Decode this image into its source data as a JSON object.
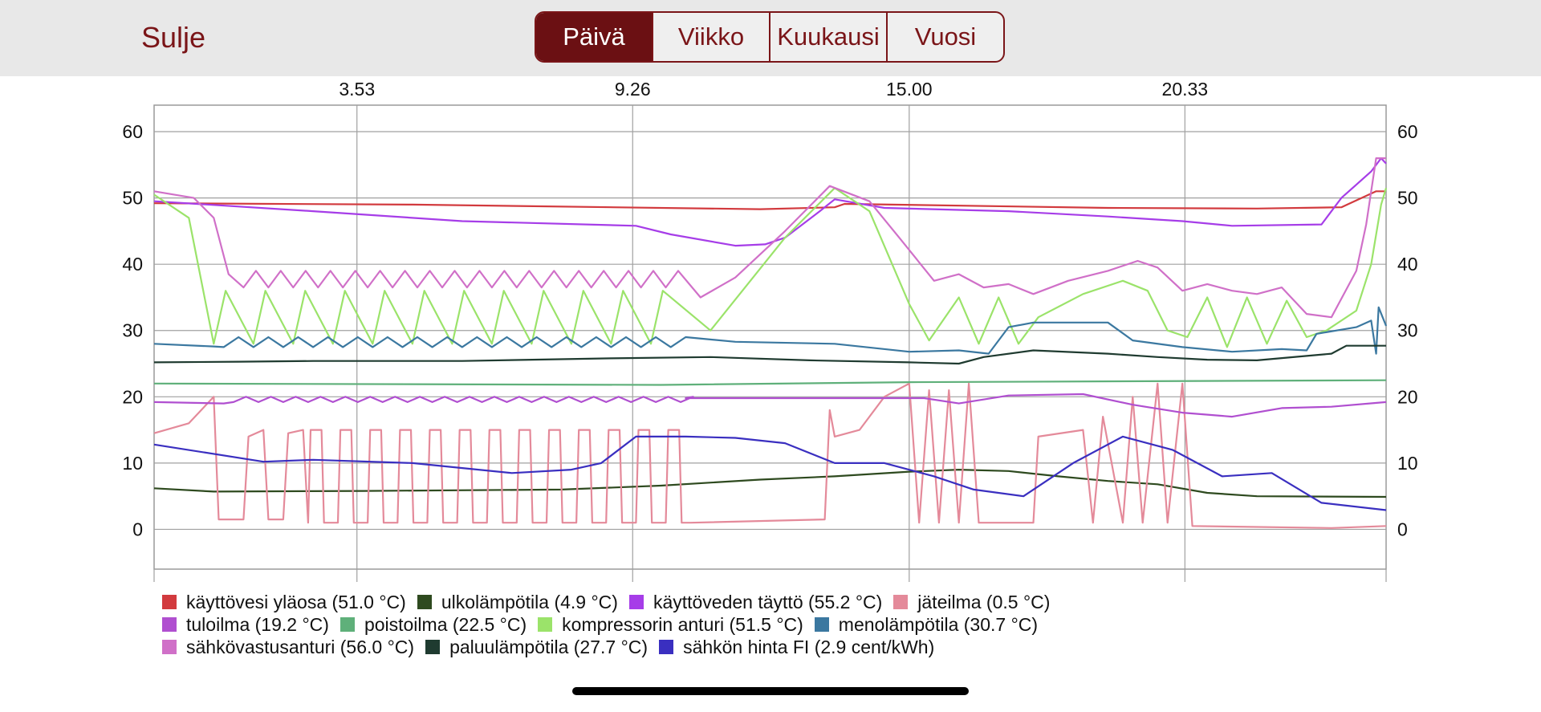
{
  "header": {
    "close_label": "Sulje",
    "tabs": [
      {
        "label": "Päivä",
        "active": true
      },
      {
        "label": "Viikko",
        "active": false
      },
      {
        "label": "Kuukausi",
        "active": false
      },
      {
        "label": "Vuosi",
        "active": false
      }
    ],
    "accent_color": "#6b1013"
  },
  "chart_data": {
    "type": "line",
    "title": "",
    "x_ticks": [
      "3.53",
      "9.26",
      "15.00",
      "20.33"
    ],
    "y_ticks": [
      60,
      50,
      40,
      30,
      20,
      10,
      0
    ],
    "ylim": [
      -6,
      64
    ],
    "x_range_hours": [
      -0.2,
      24.6
    ],
    "grid": true,
    "legend_position": "bottom",
    "series": [
      {
        "name": "käyttövesi yläosa (51.0 °C)",
        "color": "#d23a3e",
        "kind": "step",
        "points": [
          [
            -0.2,
            49.2
          ],
          [
            5,
            49
          ],
          [
            12,
            48.3
          ],
          [
            13.5,
            48.6
          ],
          [
            13.7,
            49.1
          ],
          [
            19,
            48.5
          ],
          [
            22,
            48.4
          ],
          [
            23.7,
            48.6
          ],
          [
            24.4,
            51
          ],
          [
            24.6,
            51
          ]
        ]
      },
      {
        "name": "ulkolämpötila (4.9 °C)",
        "color": "#2e4a1f",
        "points": [
          [
            -0.2,
            6.2
          ],
          [
            1,
            5.7
          ],
          [
            4,
            5.8
          ],
          [
            8,
            6
          ],
          [
            10,
            6.6
          ],
          [
            12,
            7.5
          ],
          [
            13.5,
            8
          ],
          [
            15,
            8.7
          ],
          [
            16,
            9
          ],
          [
            17,
            8.8
          ],
          [
            18,
            8
          ],
          [
            19,
            7.3
          ],
          [
            20,
            6.8
          ],
          [
            21,
            5.5
          ],
          [
            22,
            5
          ],
          [
            24.6,
            4.9
          ]
        ]
      },
      {
        "name": "käyttöveden täyttö (55.2 °C)",
        "color": "#a63de8",
        "points": [
          [
            -0.2,
            49.5
          ],
          [
            3,
            48
          ],
          [
            6,
            46.5
          ],
          [
            9.5,
            45.8
          ],
          [
            10.2,
            44.5
          ],
          [
            11.5,
            42.8
          ],
          [
            12.1,
            43
          ],
          [
            12.5,
            44
          ],
          [
            13.2,
            48
          ],
          [
            13.5,
            49.8
          ],
          [
            14.5,
            48.5
          ],
          [
            17,
            48
          ],
          [
            19,
            47.2
          ],
          [
            20.5,
            46.5
          ],
          [
            21.5,
            45.8
          ],
          [
            23.3,
            46
          ],
          [
            23.7,
            50
          ],
          [
            24,
            52
          ],
          [
            24.3,
            54
          ],
          [
            24.5,
            56
          ],
          [
            24.6,
            55.2
          ]
        ]
      },
      {
        "name": "jäteilma (0.5 °C)",
        "color": "#e48a9a",
        "kind": "jateilma",
        "points": [
          [
            -0.2,
            14.5
          ],
          [
            0.4,
            16
          ],
          [
            1,
            20
          ]
        ]
      },
      {
        "name": "tuloilma (19.2 °C)",
        "color": "#b04fd0",
        "kind": "tuloilma",
        "points": [
          [
            -0.2,
            19.2
          ],
          [
            1,
            19
          ],
          [
            10.5,
            19.8
          ],
          [
            13.5,
            19.8
          ],
          [
            15.3,
            19.8
          ],
          [
            16,
            19
          ],
          [
            17,
            20.2
          ],
          [
            18.5,
            20.4
          ],
          [
            19.5,
            18.8
          ],
          [
            20.5,
            17.6
          ],
          [
            21.5,
            17
          ],
          [
            22.5,
            18.3
          ],
          [
            23.5,
            18.5
          ],
          [
            24.6,
            19.2
          ]
        ]
      },
      {
        "name": "poistoilma (22.5 °C)",
        "color": "#5fb07a",
        "points": [
          [
            -0.2,
            22
          ],
          [
            10,
            21.8
          ],
          [
            15,
            22.2
          ],
          [
            24.6,
            22.5
          ]
        ]
      },
      {
        "name": "kompressorin anturi (51.5 °C)",
        "color": "#9be36a",
        "kind": "kompressori",
        "points": [
          [
            -0.2,
            50
          ],
          [
            0.8,
            38
          ]
        ]
      },
      {
        "name": "menolämpötila (30.7 °C)",
        "color": "#3b78a0",
        "kind": "meno",
        "points": [
          [
            -0.2,
            28
          ],
          [
            1,
            27.5
          ]
        ]
      },
      {
        "name": "sähkövastusanturi (56.0 °C)",
        "color": "#d070c8",
        "kind": "vastus",
        "points": [
          [
            -0.2,
            51
          ]
        ]
      },
      {
        "name": "paluulämpötila (27.7 °C)",
        "color": "#1f3b30",
        "points": [
          [
            -0.2,
            25.2
          ],
          [
            1.5,
            25.3
          ],
          [
            3,
            25.4
          ],
          [
            6,
            25.4
          ],
          [
            9,
            25.8
          ],
          [
            11,
            26
          ],
          [
            13,
            25.5
          ],
          [
            15,
            25.2
          ],
          [
            16,
            25
          ],
          [
            16.5,
            26
          ],
          [
            17.5,
            27
          ],
          [
            19,
            26.5
          ],
          [
            20,
            26
          ],
          [
            21,
            25.6
          ],
          [
            22,
            25.5
          ],
          [
            23.5,
            26.5
          ],
          [
            23.8,
            27.7
          ],
          [
            24.6,
            27.7
          ]
        ]
      },
      {
        "name": "sähkön hinta FI (2.9 cent/kWh)",
        "color": "#3a2fc0",
        "points": [
          [
            -0.2,
            12.8
          ],
          [
            2,
            10.2
          ],
          [
            3,
            10.5
          ],
          [
            5,
            10
          ],
          [
            7,
            8.5
          ],
          [
            8.2,
            9
          ],
          [
            8.8,
            10
          ],
          [
            9.5,
            14
          ],
          [
            10.5,
            14
          ],
          [
            11.5,
            13.8
          ],
          [
            12.5,
            13
          ],
          [
            13.5,
            10
          ],
          [
            14.5,
            10
          ],
          [
            15.5,
            8
          ],
          [
            16.3,
            6
          ],
          [
            17.3,
            5
          ],
          [
            18.3,
            10
          ],
          [
            19.3,
            14
          ],
          [
            20.3,
            12
          ],
          [
            21.3,
            8
          ],
          [
            22.3,
            8.5
          ],
          [
            23.3,
            4
          ],
          [
            24.6,
            2.9
          ]
        ]
      }
    ]
  },
  "legend": {
    "rows": [
      [
        {
          "label": "käyttövesi yläosa (51.0 °C)",
          "color": "#d23a3e"
        },
        {
          "label": "ulkolämpötila (4.9 °C)",
          "color": "#2e4a1f"
        },
        {
          "label": "käyttöveden täyttö (55.2 °C)",
          "color": "#a63de8"
        },
        {
          "label": "jäteilma (0.5 °C)",
          "color": "#e48a9a"
        }
      ],
      [
        {
          "label": "tuloilma (19.2 °C)",
          "color": "#b04fd0"
        },
        {
          "label": "poistoilma (22.5 °C)",
          "color": "#5fb07a"
        },
        {
          "label": "kompressorin anturi (51.5 °C)",
          "color": "#9be36a"
        },
        {
          "label": "menolämpötila (30.7 °C)",
          "color": "#3b78a0"
        }
      ],
      [
        {
          "label": "sähkövastusanturi (56.0 °C)",
          "color": "#d070c8"
        },
        {
          "label": "paluulämpötila (27.7 °C)",
          "color": "#1f3b30"
        },
        {
          "label": "sähkön hinta FI (2.9 cent/kWh)",
          "color": "#3a2fc0"
        }
      ]
    ]
  }
}
